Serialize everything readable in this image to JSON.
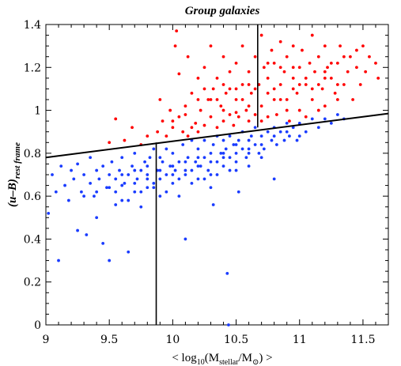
{
  "chart_data": {
    "type": "scatter",
    "title": "Group galaxies",
    "xlabel": "< log10(Mstellar/M⊙) >",
    "xlabel_parts": {
      "open": "< log",
      "sub": "10",
      "mid": "(M",
      "sub2": "stellar",
      "mid2": "/M",
      "sub3": "⊙",
      "close": ") >"
    },
    "ylabel_parts": {
      "main": "(u–B)",
      "sub": "rest frame"
    },
    "xlim": [
      9.0,
      11.7
    ],
    "ylim": [
      0.0,
      1.4
    ],
    "xticks": [
      9,
      9.5,
      10,
      10.5,
      11,
      11.5
    ],
    "xtick_labels": [
      "9",
      "9.5",
      "10",
      "10.5",
      "11",
      "11.5"
    ],
    "yticks": [
      0,
      0.2,
      0.4,
      0.6,
      0.8,
      1.0,
      1.2,
      1.4
    ],
    "ytick_labels": [
      "0",
      "0.2",
      "0.4",
      "0.6",
      "0.8",
      "1",
      "1.2",
      "1.4"
    ],
    "grid": false,
    "series": [
      {
        "color": "#ff0000",
        "description_x_range": [
          9.5,
          11.7
        ],
        "points": [
          [
            9.5,
            0.85
          ],
          [
            9.55,
            0.96
          ],
          [
            9.62,
            0.86
          ],
          [
            9.68,
            0.92
          ],
          [
            9.75,
            0.84
          ],
          [
            9.8,
            0.88
          ],
          [
            9.88,
            0.9
          ],
          [
            9.9,
            1.05
          ],
          [
            9.92,
            0.95
          ],
          [
            9.95,
            0.88
          ],
          [
            9.98,
            1.0
          ],
          [
            10.0,
            0.92
          ],
          [
            10.02,
            1.3
          ],
          [
            10.03,
            1.37
          ],
          [
            10.05,
            0.97
          ],
          [
            10.05,
            1.17
          ],
          [
            10.08,
            0.9
          ],
          [
            10.1,
            1.02
          ],
          [
            10.12,
            1.25
          ],
          [
            10.12,
            0.88
          ],
          [
            10.15,
            1.08
          ],
          [
            10.18,
            0.94
          ],
          [
            10.2,
            1.15
          ],
          [
            10.2,
            0.9
          ],
          [
            10.22,
            1.0
          ],
          [
            10.25,
            1.2
          ],
          [
            10.25,
            0.93
          ],
          [
            10.28,
            1.05
          ],
          [
            10.3,
            0.97
          ],
          [
            10.3,
            1.3
          ],
          [
            10.32,
            1.1
          ],
          [
            10.35,
            0.92
          ],
          [
            10.35,
            1.15
          ],
          [
            10.38,
            1.02
          ],
          [
            10.4,
            0.95
          ],
          [
            10.4,
            1.25
          ],
          [
            10.42,
            1.08
          ],
          [
            10.45,
            0.98
          ],
          [
            10.45,
            1.18
          ],
          [
            10.48,
            0.93
          ],
          [
            10.5,
            1.05
          ],
          [
            10.5,
            1.22
          ],
          [
            10.52,
            0.97
          ],
          [
            10.55,
            1.12
          ],
          [
            10.55,
            1.3
          ],
          [
            10.58,
            1.0
          ],
          [
            10.6,
            1.18
          ],
          [
            10.6,
            0.95
          ],
          [
            10.62,
            1.08
          ],
          [
            10.65,
            1.25
          ],
          [
            10.65,
            0.98
          ],
          [
            10.68,
            1.12
          ],
          [
            10.7,
            1.35
          ],
          [
            10.7,
            1.02
          ],
          [
            10.72,
            1.2
          ],
          [
            10.75,
            0.97
          ],
          [
            10.75,
            1.15
          ],
          [
            10.78,
            1.28
          ],
          [
            10.8,
            1.05
          ],
          [
            10.8,
            1.22
          ],
          [
            10.82,
            0.98
          ],
          [
            10.85,
            1.12
          ],
          [
            10.85,
            1.32
          ],
          [
            10.88,
            1.18
          ],
          [
            10.9,
            1.05
          ],
          [
            10.9,
            1.25
          ],
          [
            10.92,
            0.95
          ],
          [
            10.95,
            1.15
          ],
          [
            10.95,
            1.3
          ],
          [
            10.98,
            1.08
          ],
          [
            11.0,
            1.2
          ],
          [
            11.0,
            1.0
          ],
          [
            11.02,
            1.28
          ],
          [
            11.05,
            1.12
          ],
          [
            11.05,
            0.97
          ],
          [
            11.08,
            1.22
          ],
          [
            11.1,
            1.05
          ],
          [
            11.1,
            1.35
          ],
          [
            11.12,
            1.18
          ],
          [
            11.15,
            1.0
          ],
          [
            11.15,
            1.25
          ],
          [
            11.18,
            1.1
          ],
          [
            11.2,
            1.3
          ],
          [
            11.2,
            1.02
          ],
          [
            11.22,
            1.2
          ],
          [
            11.25,
            1.15
          ],
          [
            11.28,
            1.08
          ],
          [
            11.3,
            1.22
          ],
          [
            11.32,
            1.3
          ],
          [
            11.35,
            1.12
          ],
          [
            11.38,
            1.18
          ],
          [
            11.4,
            1.25
          ],
          [
            11.42,
            1.05
          ],
          [
            11.45,
            1.2
          ],
          [
            11.48,
            1.12
          ],
          [
            11.5,
            1.3
          ],
          [
            11.52,
            1.18
          ],
          [
            11.55,
            1.25
          ],
          [
            11.6,
            1.22
          ],
          [
            11.62,
            1.15
          ],
          [
            11.3,
            1.12
          ],
          [
            11.2,
            1.15
          ],
          [
            10.95,
            1.2
          ],
          [
            10.85,
            1.2
          ],
          [
            10.75,
            1.22
          ],
          [
            10.6,
            1.12
          ],
          [
            10.5,
            1.1
          ],
          [
            10.4,
            1.12
          ],
          [
            10.3,
            1.05
          ],
          [
            10.2,
            1.05
          ],
          [
            10.1,
            0.98
          ],
          [
            10.0,
            0.95
          ],
          [
            10.15,
            0.92
          ],
          [
            10.25,
            1.1
          ],
          [
            10.35,
            1.05
          ],
          [
            10.45,
            1.1
          ],
          [
            10.55,
            1.05
          ],
          [
            10.65,
            1.1
          ],
          [
            10.75,
            1.08
          ],
          [
            10.85,
            1.05
          ],
          [
            10.95,
            1.1
          ],
          [
            11.05,
            1.15
          ],
          [
            11.15,
            1.12
          ],
          [
            11.25,
            1.22
          ],
          [
            11.35,
            1.25
          ],
          [
            11.45,
            1.28
          ],
          [
            10.5,
            0.99
          ],
          [
            10.7,
            0.95
          ],
          [
            10.9,
            1.0
          ],
          [
            11.1,
            1.1
          ],
          [
            11.3,
            1.05
          ],
          [
            10.4,
            1.0
          ],
          [
            10.6,
            1.02
          ],
          [
            10.8,
            1.1
          ],
          [
            11.0,
            1.12
          ],
          [
            11.2,
            1.18
          ]
        ]
      },
      {
        "color": "#1a3cff",
        "description_x_range": [
          9.0,
          11.5
        ],
        "points": [
          [
            9.02,
            0.52
          ],
          [
            9.05,
            0.7
          ],
          [
            9.08,
            0.62
          ],
          [
            9.1,
            0.3
          ],
          [
            9.12,
            0.74
          ],
          [
            9.15,
            0.65
          ],
          [
            9.18,
            0.58
          ],
          [
            9.2,
            0.72
          ],
          [
            9.22,
            0.68
          ],
          [
            9.25,
            0.44
          ],
          [
            9.25,
            0.75
          ],
          [
            9.28,
            0.62
          ],
          [
            9.3,
            0.7
          ],
          [
            9.32,
            0.42
          ],
          [
            9.35,
            0.66
          ],
          [
            9.35,
            0.78
          ],
          [
            9.38,
            0.6
          ],
          [
            9.4,
            0.72
          ],
          [
            9.4,
            0.5
          ],
          [
            9.42,
            0.68
          ],
          [
            9.45,
            0.74
          ],
          [
            9.45,
            0.38
          ],
          [
            9.48,
            0.64
          ],
          [
            9.5,
            0.7
          ],
          [
            9.5,
            0.3
          ],
          [
            9.52,
            0.76
          ],
          [
            9.55,
            0.62
          ],
          [
            9.55,
            0.68
          ],
          [
            9.58,
            0.72
          ],
          [
            9.6,
            0.58
          ],
          [
            9.6,
            0.78
          ],
          [
            9.62,
            0.66
          ],
          [
            9.65,
            0.7
          ],
          [
            9.65,
            0.34
          ],
          [
            9.68,
            0.74
          ],
          [
            9.7,
            0.62
          ],
          [
            9.7,
            0.8
          ],
          [
            9.72,
            0.68
          ],
          [
            9.75,
            0.72
          ],
          [
            9.75,
            0.55
          ],
          [
            9.78,
            0.76
          ],
          [
            9.8,
            0.64
          ],
          [
            9.8,
            0.7
          ],
          [
            9.82,
            0.78
          ],
          [
            9.85,
            0.66
          ],
          [
            9.85,
            0.82
          ],
          [
            9.88,
            0.72
          ],
          [
            9.9,
            0.68
          ],
          [
            9.9,
            0.6
          ],
          [
            9.92,
            0.76
          ],
          [
            9.95,
            0.7
          ],
          [
            9.95,
            0.82
          ],
          [
            9.98,
            0.74
          ],
          [
            10.0,
            0.66
          ],
          [
            10.0,
            0.8
          ],
          [
            10.02,
            0.72
          ],
          [
            10.05,
            0.76
          ],
          [
            10.05,
            0.6
          ],
          [
            10.08,
            0.84
          ],
          [
            10.1,
            0.7
          ],
          [
            10.1,
            0.4
          ],
          [
            10.12,
            0.78
          ],
          [
            10.15,
            0.72
          ],
          [
            10.15,
            0.86
          ],
          [
            10.18,
            0.76
          ],
          [
            10.2,
            0.68
          ],
          [
            10.2,
            0.82
          ],
          [
            10.22,
            0.74
          ],
          [
            10.25,
            0.78
          ],
          [
            10.25,
            0.86
          ],
          [
            10.28,
            0.72
          ],
          [
            10.3,
            0.8
          ],
          [
            10.3,
            0.64
          ],
          [
            10.32,
            0.84
          ],
          [
            10.35,
            0.76
          ],
          [
            10.35,
            0.88
          ],
          [
            10.38,
            0.8
          ],
          [
            10.4,
            0.74
          ],
          [
            10.4,
            0.86
          ],
          [
            10.42,
            0.82
          ],
          [
            10.43,
            0.24
          ],
          [
            10.45,
            0.78
          ],
          [
            10.45,
            0.88
          ],
          [
            10.48,
            0.84
          ],
          [
            10.5,
            0.8
          ],
          [
            10.5,
            0.72
          ],
          [
            10.52,
            0.86
          ],
          [
            10.55,
            0.82
          ],
          [
            10.55,
            0.9
          ],
          [
            10.58,
            0.78
          ],
          [
            10.6,
            0.86
          ],
          [
            10.6,
            0.74
          ],
          [
            10.62,
            0.88
          ],
          [
            10.65,
            0.84
          ],
          [
            10.65,
            0.92
          ],
          [
            10.68,
            0.8
          ],
          [
            10.7,
            0.88
          ],
          [
            10.72,
            0.82
          ],
          [
            10.75,
            0.9
          ],
          [
            10.78,
            0.86
          ],
          [
            10.8,
            0.92
          ],
          [
            10.82,
            0.84
          ],
          [
            10.85,
            0.9
          ],
          [
            10.88,
            0.86
          ],
          [
            10.9,
            0.94
          ],
          [
            10.92,
            0.88
          ],
          [
            10.95,
            0.92
          ],
          [
            10.98,
            0.86
          ],
          [
            11.0,
            0.94
          ],
          [
            11.05,
            0.9
          ],
          [
            11.1,
            0.96
          ],
          [
            11.15,
            0.92
          ],
          [
            11.2,
            0.96
          ],
          [
            11.25,
            0.94
          ],
          [
            11.3,
            0.98
          ],
          [
            11.35,
            0.96
          ],
          [
            10.44,
            0.0
          ],
          [
            9.6,
            0.65
          ],
          [
            9.7,
            0.66
          ],
          [
            9.8,
            0.68
          ],
          [
            9.9,
            0.72
          ],
          [
            10.0,
            0.74
          ],
          [
            10.1,
            0.76
          ],
          [
            10.2,
            0.78
          ],
          [
            10.3,
            0.76
          ],
          [
            10.4,
            0.8
          ],
          [
            10.5,
            0.84
          ],
          [
            10.6,
            0.82
          ],
          [
            10.7,
            0.84
          ],
          [
            9.3,
            0.6
          ],
          [
            9.4,
            0.62
          ],
          [
            9.5,
            0.64
          ],
          [
            9.6,
            0.7
          ],
          [
            9.7,
            0.72
          ],
          [
            9.8,
            0.74
          ],
          [
            9.9,
            0.78
          ],
          [
            10.0,
            0.7
          ],
          [
            10.1,
            0.72
          ],
          [
            10.2,
            0.74
          ],
          [
            10.3,
            0.7
          ],
          [
            10.4,
            0.78
          ],
          [
            10.5,
            0.76
          ],
          [
            10.6,
            0.8
          ],
          [
            10.7,
            0.78
          ],
          [
            10.8,
            0.88
          ],
          [
            10.9,
            0.9
          ],
          [
            11.0,
            0.88
          ],
          [
            10.15,
            0.66
          ],
          [
            10.25,
            0.68
          ],
          [
            10.35,
            0.7
          ],
          [
            10.45,
            0.72
          ],
          [
            9.55,
            0.56
          ],
          [
            9.65,
            0.58
          ],
          [
            9.75,
            0.62
          ],
          [
            9.85,
            0.64
          ],
          [
            9.95,
            0.62
          ],
          [
            10.05,
            0.68
          ],
          [
            10.32,
            0.56
          ],
          [
            10.52,
            0.62
          ],
          [
            10.8,
            0.68
          ]
        ]
      }
    ],
    "lines": [
      {
        "kind": "diagonal",
        "x": [
          9.0,
          11.7
        ],
        "y": [
          0.78,
          0.985
        ],
        "color": "#000000"
      },
      {
        "kind": "vertical",
        "x": [
          9.87,
          9.87
        ],
        "y": [
          0.0,
          0.85
        ],
        "color": "#000000"
      },
      {
        "kind": "vertical",
        "x": [
          10.67,
          10.67
        ],
        "y": [
          0.92,
          1.4
        ],
        "color": "#000000"
      }
    ]
  }
}
